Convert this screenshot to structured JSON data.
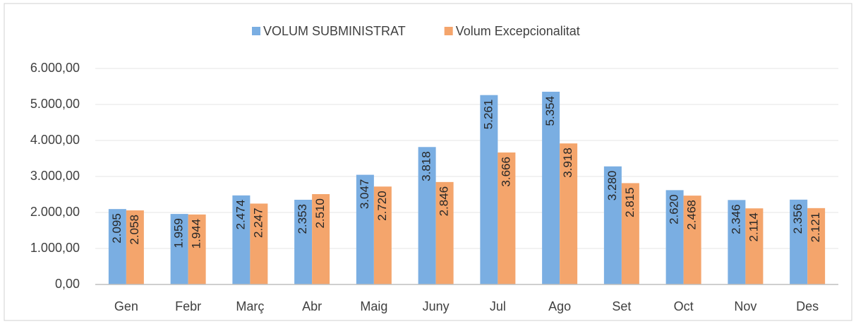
{
  "chart_data": {
    "type": "bar",
    "categories": [
      "Gen",
      "Febr",
      "Març",
      "Abr",
      "Maig",
      "Juny",
      "Jul",
      "Ago",
      "Set",
      "Oct",
      "Nov",
      "Des"
    ],
    "series": [
      {
        "name": "VOLUM SUBMINISTRAT",
        "color": "#7aaee2",
        "values": [
          2095,
          1959,
          2474,
          2353,
          3047,
          3818,
          5261,
          5354,
          3280,
          2620,
          2346,
          2356
        ],
        "value_labels": [
          "2.095",
          "1.959",
          "2.474",
          "2.353",
          "3.047",
          "3.818",
          "5.261",
          "5.354",
          "3.280",
          "2.620",
          "2.346",
          "2.356"
        ]
      },
      {
        "name": "Volum Excepcionalitat",
        "color": "#f4a56c",
        "values": [
          2058,
          1944,
          2247,
          2510,
          2720,
          2846,
          3666,
          3918,
          2815,
          2468,
          2114,
          2121
        ],
        "value_labels": [
          "2.058",
          "1.944",
          "2.247",
          "2.510",
          "2.720",
          "2.846",
          "3.666",
          "3.918",
          "2.815",
          "2.468",
          "2.114",
          "2.121"
        ]
      }
    ],
    "ylim": [
      0,
      6000
    ],
    "yticks": [
      {
        "value": 0,
        "label": "0,00"
      },
      {
        "value": 1000,
        "label": "1.000,00"
      },
      {
        "value": 2000,
        "label": "2.000,00"
      },
      {
        "value": 3000,
        "label": "3.000,00"
      },
      {
        "value": 4000,
        "label": "4.000,00"
      },
      {
        "value": 5000,
        "label": "5.000,00"
      },
      {
        "value": 6000,
        "label": "6.000,00"
      }
    ],
    "grid": true,
    "legend": "top"
  }
}
